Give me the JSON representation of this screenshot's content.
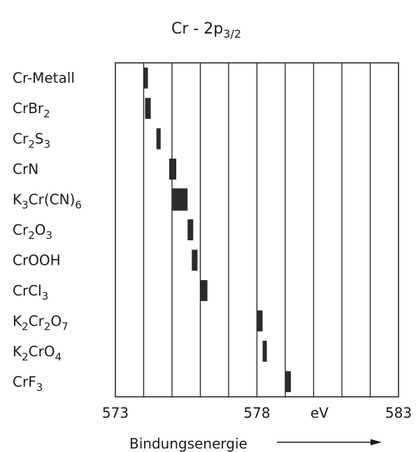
{
  "chart_data": {
    "type": "bar",
    "orientation": "horizontal-ranges",
    "title": "Cr - 2p 3/2",
    "title_main": "Cr - 2p",
    "title_sub": "3/2",
    "xlabel": "Bindungsenergie",
    "x_unit": "eV",
    "xlim": [
      573,
      583
    ],
    "x_ticks": [
      "573",
      "578",
      "583"
    ],
    "grid": true,
    "grid_step": 1,
    "bar_color": "#2b2b2b",
    "categories": [
      {
        "label": "Cr-Metall",
        "parts": [
          [
            "Cr-Metall",
            ""
          ]
        ],
        "range": [
          574.0,
          574.15
        ]
      },
      {
        "label": "CrBr2",
        "parts": [
          [
            "CrBr",
            ""
          ],
          [
            "2",
            "sub"
          ]
        ],
        "range": [
          574.05,
          574.25
        ]
      },
      {
        "label": "Cr2S3",
        "parts": [
          [
            "Cr",
            ""
          ],
          [
            "2",
            "sub"
          ],
          [
            "S",
            ""
          ],
          [
            "3",
            "sub"
          ]
        ],
        "range": [
          574.45,
          574.6
        ]
      },
      {
        "label": "CrN",
        "parts": [
          [
            "CrN",
            ""
          ]
        ],
        "range": [
          574.9,
          575.15
        ]
      },
      {
        "label": "K3Cr(CN)6",
        "parts": [
          [
            "K",
            ""
          ],
          [
            "3",
            "sub"
          ],
          [
            "Cr(CN)",
            ""
          ],
          [
            "6",
            "sub"
          ]
        ],
        "range": [
          575.0,
          575.55
        ]
      },
      {
        "label": "Cr2O3",
        "parts": [
          [
            "Cr",
            ""
          ],
          [
            "2",
            "sub"
          ],
          [
            "O",
            ""
          ],
          [
            "3",
            "sub"
          ]
        ],
        "range": [
          575.55,
          575.75
        ]
      },
      {
        "label": "CrOOH",
        "parts": [
          [
            "CrOOH",
            ""
          ]
        ],
        "range": [
          575.7,
          575.9
        ]
      },
      {
        "label": "CrCl3",
        "parts": [
          [
            "CrCl",
            ""
          ],
          [
            "3",
            "sub"
          ]
        ],
        "range": [
          576.0,
          576.25
        ]
      },
      {
        "label": "K2Cr2O7",
        "parts": [
          [
            "K",
            ""
          ],
          [
            "2",
            "sub"
          ],
          [
            "Cr",
            ""
          ],
          [
            "2",
            "sub"
          ],
          [
            "O",
            ""
          ],
          [
            "7",
            "sub"
          ]
        ],
        "range": [
          578.0,
          578.2
        ]
      },
      {
        "label": "K2CrO4",
        "parts": [
          [
            "K",
            ""
          ],
          [
            "2",
            "sub"
          ],
          [
            "CrO",
            ""
          ],
          [
            "4",
            "sub"
          ]
        ],
        "range": [
          578.2,
          578.35
        ]
      },
      {
        "label": "CrF3",
        "parts": [
          [
            "CrF",
            ""
          ],
          [
            "3",
            "sub"
          ]
        ],
        "range": [
          579.0,
          579.2
        ]
      }
    ]
  }
}
